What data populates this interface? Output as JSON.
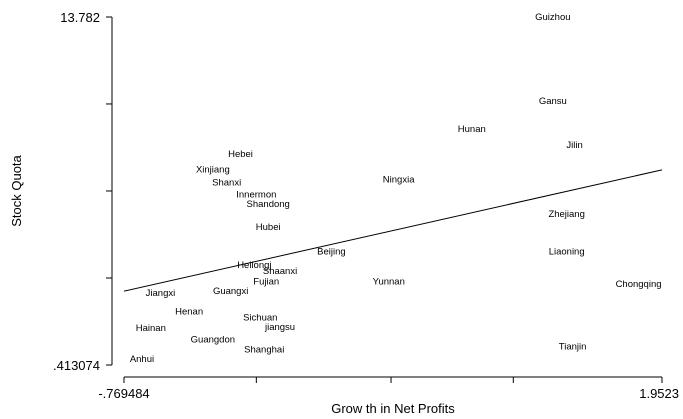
{
  "chart_data": {
    "type": "scatter",
    "marker": "text-labels",
    "xlabel": "Grow th in Net Profits",
    "ylabel": "Stock Quota",
    "xlim": [
      -0.769484,
      1.9523
    ],
    "ylim": [
      0.413074,
      13.782
    ],
    "x_tick_labels": [
      "-.769484",
      "1.9523"
    ],
    "y_tick_labels": [
      "13.782",
      ".413074"
    ],
    "x_ticks": [
      -0.769484,
      -0.1,
      0.581408,
      1.2,
      1.9523
    ],
    "y_ticks": [
      0.413074,
      3.755805,
      7.098537,
      10.441268,
      13.782
    ],
    "grid": false,
    "points": [
      {
        "label": "Guizhou",
        "x": 1.4,
        "y": 13.78
      },
      {
        "label": "Gansu",
        "x": 1.4,
        "y": 10.55
      },
      {
        "label": "Hunan",
        "x": 0.99,
        "y": 9.47
      },
      {
        "label": "Jilin",
        "x": 1.51,
        "y": 8.87
      },
      {
        "label": "Hebei",
        "x": -0.18,
        "y": 8.51
      },
      {
        "label": "Xinjiang",
        "x": -0.32,
        "y": 7.92
      },
      {
        "label": "Shanxi",
        "x": -0.25,
        "y": 7.43
      },
      {
        "label": "Ningxia",
        "x": 0.62,
        "y": 7.54
      },
      {
        "label": "Innermon",
        "x": -0.1,
        "y": 6.96
      },
      {
        "label": "Shandong",
        "x": -0.04,
        "y": 6.59
      },
      {
        "label": "Zhejiang",
        "x": 1.47,
        "y": 6.22
      },
      {
        "label": "Hubei",
        "x": -0.04,
        "y": 5.72
      },
      {
        "label": "Beijing",
        "x": 0.28,
        "y": 4.77
      },
      {
        "label": "Liaoning",
        "x": 1.47,
        "y": 4.77
      },
      {
        "label": "Heilongj",
        "x": -0.11,
        "y": 4.26
      },
      {
        "label": "Shaanxi",
        "x": 0.02,
        "y": 4.03
      },
      {
        "label": "Fujian",
        "x": -0.05,
        "y": 3.63
      },
      {
        "label": "Yunnan",
        "x": 0.57,
        "y": 3.63
      },
      {
        "label": "Chongqing",
        "x": 1.95,
        "y": 3.52
      },
      {
        "label": "Jiangxi",
        "x": -0.66,
        "y": 3.18
      },
      {
        "label": "Guangxi",
        "x": -0.23,
        "y": 3.26
      },
      {
        "label": "Henan",
        "x": -0.44,
        "y": 2.46
      },
      {
        "label": "Sichuan",
        "x": -0.08,
        "y": 2.24
      },
      {
        "label": "jiangsu",
        "x": 0.02,
        "y": 1.87
      },
      {
        "label": "Hainan",
        "x": -0.71,
        "y": 1.84
      },
      {
        "label": "Guangdon",
        "x": -0.32,
        "y": 1.4
      },
      {
        "label": "Shanghai",
        "x": -0.06,
        "y": 1.01
      },
      {
        "label": "Tianjin",
        "x": 1.5,
        "y": 1.12
      },
      {
        "label": "Anhui",
        "x": -0.74,
        "y": 0.64
      }
    ],
    "fit_line": {
      "x": [
        -0.769484,
        1.9523
      ],
      "y": [
        3.25,
        7.91
      ]
    }
  }
}
